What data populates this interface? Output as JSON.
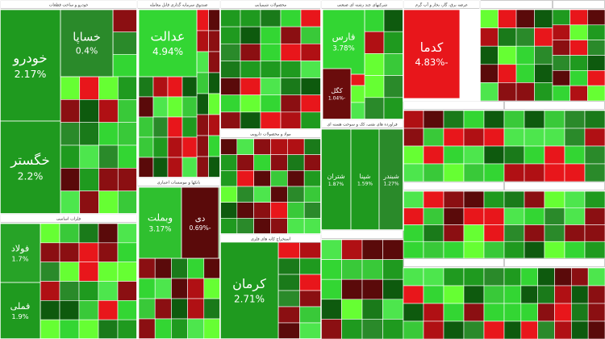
{
  "sectors": [
    {
      "title": "خودرو و ساخت قطعات",
      "tiles": [
        {
          "label": "خودرو",
          "change": "2.17%",
          "color": "#1f9a1f"
        },
        {
          "label": "خگستر",
          "change": "2.2%",
          "color": "#1f9a1f"
        },
        {
          "label": "خساپا",
          "change": "0.4%",
          "color": "#2a8a2a"
        }
      ]
    },
    {
      "title": "فلزات اساسی",
      "tiles": [
        {
          "label": "فولاد",
          "change": "1.7%",
          "color": "#27a327"
        },
        {
          "label": "فملی",
          "change": "1.9%",
          "color": "#1f9a1f"
        }
      ]
    },
    {
      "title": "صندوق سرمایه گذاری قابل معامله",
      "tiles": [
        {
          "label": "عدالت",
          "change": "4.94%",
          "color": "#33d633"
        }
      ]
    },
    {
      "title": "بانکها و موسسات اعتباری",
      "tiles": [
        {
          "label": "وبملت",
          "change": "3.17%",
          "color": "#2fc02f"
        },
        {
          "label": "دی",
          "change": "-0.69%",
          "color": "#5a0a0a"
        }
      ]
    },
    {
      "title": "محصولات شیمیایی",
      "tiles": []
    },
    {
      "title": "مواد و محصولات دارویی",
      "tiles": []
    },
    {
      "title": "استخراج کانه های فلزی",
      "tiles": [
        {
          "label": "کرمان",
          "change": "2.71%",
          "color": "#1f9a1f"
        }
      ]
    },
    {
      "title": "شرکتهای چند رشته ای صنعتی",
      "tiles": [
        {
          "label": "فارس",
          "change": "3.78%",
          "color": "#33d633"
        },
        {
          "label": "کگل",
          "change": "-1.04%",
          "color": "#6a0c0c"
        }
      ]
    },
    {
      "title": "فراورده های نفتی، کک و سوخت هسته ای",
      "tiles": [
        {
          "label": "شتران",
          "change": "1.87%",
          "color": "#1f9a1f"
        },
        {
          "label": "شپنا",
          "change": "1.59%",
          "color": "#1f9a1f"
        },
        {
          "label": "شبندر",
          "change": "1.27%",
          "color": "#2a8a2a"
        }
      ]
    },
    {
      "title": "عرضه برق، گاز، بخار و آب گرم",
      "tiles": [
        {
          "label": "کدما",
          "change": "-4.83%",
          "color": "#e8161b"
        }
      ]
    }
  ]
}
